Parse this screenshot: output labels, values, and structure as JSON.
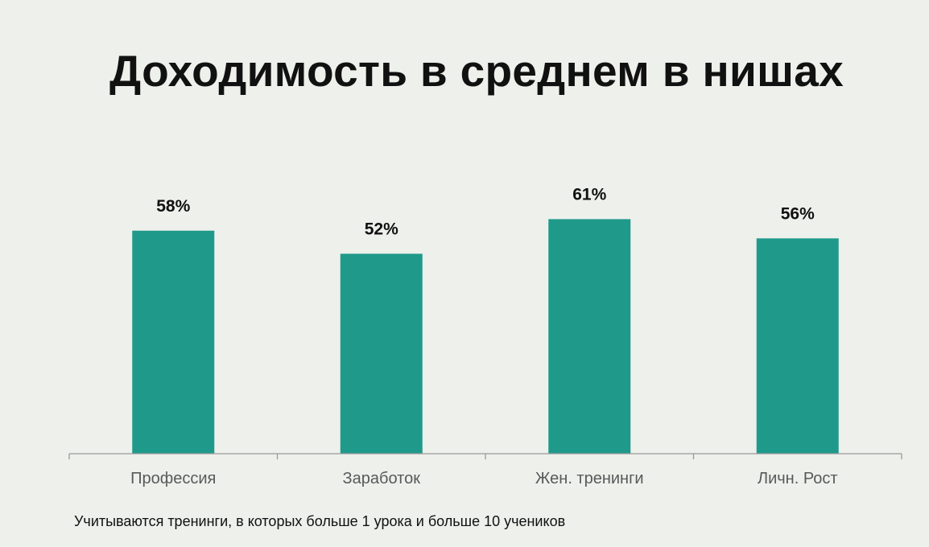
{
  "title": "Доходимость в среднем в нишах",
  "footnote": "Учитываются тренинги, в которых больше 1 урока и больше 10 учеников",
  "colors": {
    "bar": "#1f9a8a",
    "background": "#eef0ec",
    "axis": "#9a9a9a",
    "category_text": "#595959",
    "value_text": "#111111"
  },
  "chart_data": {
    "type": "bar",
    "categories": [
      "Профессия",
      "Заработок",
      "Жен. тренинги",
      "Личн. Рост"
    ],
    "values": [
      58,
      52,
      61,
      56
    ],
    "value_labels": [
      "58%",
      "52%",
      "61%",
      "56%"
    ],
    "title": "Доходимость в среднем в нишах",
    "xlabel": "",
    "ylabel": "",
    "ylim": [
      0,
      75
    ],
    "grid": false,
    "legend": "none"
  }
}
